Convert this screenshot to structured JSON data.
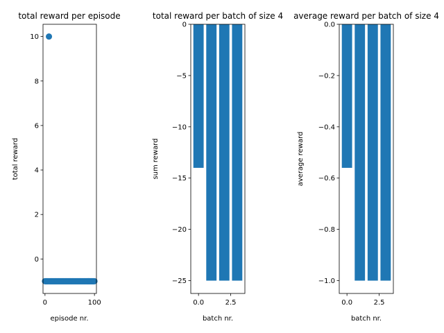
{
  "chart_data": [
    {
      "type": "scatter",
      "title": "total reward per episode",
      "xlabel": "episode nr.",
      "ylabel": "total reward",
      "xlim": [
        -4,
        104
      ],
      "ylim": [
        -1.55,
        10.55
      ],
      "xticks": [
        0,
        100
      ],
      "xtick_labels": [
        "0",
        "100"
      ],
      "yticks": [
        0,
        2,
        4,
        6,
        8,
        10
      ],
      "ytick_labels": [
        "0",
        "2",
        "4",
        "6",
        "8",
        "10"
      ],
      "grid": false,
      "color": "#1f77b4",
      "points": {
        "x": [
          8,
          0,
          1,
          2,
          3,
          4,
          5,
          6,
          7,
          9,
          10,
          11,
          12,
          13,
          14,
          15,
          16,
          17,
          18,
          19,
          20,
          21,
          22,
          23,
          24,
          25,
          26,
          27,
          28,
          29,
          30,
          31,
          32,
          33,
          34,
          35,
          36,
          37,
          38,
          39,
          40,
          41,
          42,
          43,
          44,
          45,
          46,
          47,
          48,
          49,
          50,
          51,
          52,
          53,
          54,
          55,
          56,
          57,
          58,
          59,
          60,
          61,
          62,
          63,
          64,
          65,
          66,
          67,
          68,
          69,
          70,
          71,
          72,
          73,
          74,
          75,
          76,
          77,
          78,
          79,
          80,
          81,
          82,
          83,
          84,
          85,
          86,
          87,
          88,
          89,
          90,
          91,
          92,
          93,
          94,
          95,
          96,
          97,
          98,
          99,
          100
        ],
        "y": [
          10,
          -1,
          -1,
          -1,
          -1,
          -1,
          -1,
          -1,
          -1,
          -1,
          -1,
          -1,
          -1,
          -1,
          -1,
          -1,
          -1,
          -1,
          -1,
          -1,
          -1,
          -1,
          -1,
          -1,
          -1,
          -1,
          -1,
          -1,
          -1,
          -1,
          -1,
          -1,
          -1,
          -1,
          -1,
          -1,
          -1,
          -1,
          -1,
          -1,
          -1,
          -1,
          -1,
          -1,
          -1,
          -1,
          -1,
          -1,
          -1,
          -1,
          -1,
          -1,
          -1,
          -1,
          -1,
          -1,
          -1,
          -1,
          -1,
          -1,
          -1,
          -1,
          -1,
          -1,
          -1,
          -1,
          -1,
          -1,
          -1,
          -1,
          -1,
          -1,
          -1,
          -1,
          -1,
          -1,
          -1,
          -1,
          -1,
          -1,
          -1,
          -1,
          -1,
          -1,
          -1,
          -1,
          -1,
          -1,
          -1,
          -1,
          -1,
          -1,
          -1,
          -1,
          -1,
          -1,
          -1,
          -1,
          -1,
          -1,
          -1
        ]
      }
    },
    {
      "type": "bar",
      "title": "total reward per batch of size 4",
      "xlabel": "batch nr.",
      "ylabel": "sum reward",
      "categories": [
        0,
        1,
        2,
        3
      ],
      "values": [
        -14,
        -25,
        -25,
        -25
      ],
      "xlim": [
        -0.6,
        3.6
      ],
      "ylim": [
        -26.25,
        0
      ],
      "xticks": [
        0,
        2.5
      ],
      "xtick_labels": [
        "0.0",
        "2.5"
      ],
      "yticks": [
        0,
        -5,
        -10,
        -15,
        -20,
        -25
      ],
      "ytick_labels": [
        "0",
        "−5",
        "−10",
        "−15",
        "−20",
        "−25"
      ],
      "grid": false,
      "color": "#1f77b4"
    },
    {
      "type": "bar",
      "title": "average reward per batch of size 4",
      "xlabel": "batch nr.",
      "ylabel": "average reward",
      "categories": [
        0,
        1,
        2,
        3
      ],
      "values": [
        -0.56,
        -1.0,
        -1.0,
        -1.0
      ],
      "xlim": [
        -0.6,
        3.6
      ],
      "ylim": [
        -1.05,
        0
      ],
      "xticks": [
        0,
        2.5
      ],
      "xtick_labels": [
        "0.0",
        "2.5"
      ],
      "yticks": [
        0,
        -0.2,
        -0.4,
        -0.6,
        -0.8,
        -1.0
      ],
      "ytick_labels": [
        "0.0",
        "−0.2",
        "−0.4",
        "−0.6",
        "−0.8",
        "−1.0"
      ],
      "grid": false,
      "color": "#1f77b4"
    }
  ]
}
